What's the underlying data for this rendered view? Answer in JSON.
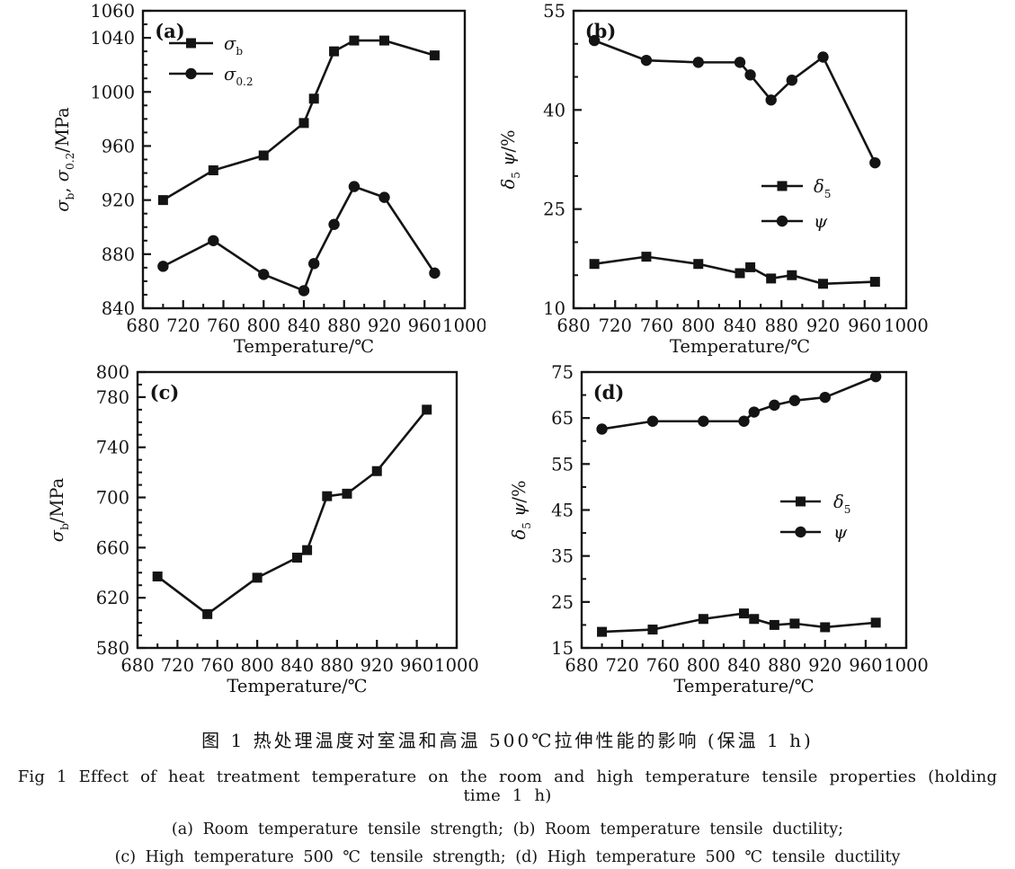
{
  "figure": {
    "caption_zh": "图 1  热处理温度对室温和高温 500℃拉伸性能的影响 (保温 1 h)",
    "caption_en": "Fig 1   Effect of heat treatment temperature on the room and high temperature tensile properties (holding time 1 h)",
    "caption_items_ab": "(a) Room temperature tensile strength;  (b) Room temperature tensile ductility;",
    "caption_items_cd": "(c) High temperature 500 ℃ tensile strength;  (d) High temperature 500 ℃ tensile ductility"
  },
  "colors": {
    "ink": "#141414",
    "paper": "#ffffff"
  },
  "chart_data": [
    {
      "id": "a",
      "type": "line",
      "panel_label": "(a)",
      "xlabel": "Temperature/℃",
      "ylabel_segments": [
        {
          "t": "σ"
        },
        {
          "t": "b",
          "sub": true
        },
        {
          "t": ", "
        },
        {
          "t": "σ"
        },
        {
          "t": "0.2",
          "sub": true
        },
        {
          "t": "/MPa"
        }
      ],
      "xlim": [
        680,
        1000
      ],
      "ylim": [
        840,
        1060
      ],
      "xticks": [
        680,
        720,
        760,
        800,
        840,
        880,
        920,
        960,
        1000
      ],
      "yticks": [
        840,
        880,
        920,
        960,
        1000,
        1040,
        1060
      ],
      "x_minor_step": 20,
      "y_minor_step": 10,
      "grid": false,
      "legend_position": "inside-top-left",
      "x": [
        700,
        750,
        800,
        840,
        850,
        870,
        890,
        920,
        970
      ],
      "series": [
        {
          "name": "σb",
          "name_segments": [
            {
              "t": "σ"
            },
            {
              "t": "b",
              "sub": true
            }
          ],
          "marker": "square",
          "values": [
            920,
            942,
            953,
            977,
            995,
            1030,
            1038,
            1038,
            1027
          ]
        },
        {
          "name": "σ0.2",
          "name_segments": [
            {
              "t": "σ"
            },
            {
              "t": "0.2",
              "sub": true
            }
          ],
          "marker": "circle",
          "values": [
            871,
            890,
            865,
            853,
            873,
            902,
            930,
            922,
            866
          ]
        }
      ]
    },
    {
      "id": "b",
      "type": "line",
      "panel_label": "(b)",
      "xlabel": "Temperature/℃",
      "ylabel_segments": [
        {
          "t": "δ"
        },
        {
          "t": "5",
          "sub": true
        },
        {
          "t": " ψ"
        },
        {
          "t": "/%"
        }
      ],
      "xlim": [
        680,
        1000
      ],
      "ylim": [
        10,
        55
      ],
      "xticks": [
        680,
        720,
        760,
        800,
        840,
        880,
        920,
        960,
        1000
      ],
      "yticks": [
        10,
        25,
        40,
        55
      ],
      "x_minor_step": 20,
      "y_minor_step": 5,
      "grid": false,
      "legend_position": "inside-middle-right",
      "x": [
        700,
        750,
        800,
        840,
        850,
        870,
        890,
        920,
        970
      ],
      "series": [
        {
          "name": "δ5",
          "name_segments": [
            {
              "t": "δ"
            },
            {
              "t": "5",
              "sub": true
            }
          ],
          "marker": "square",
          "values": [
            16.7,
            17.8,
            16.7,
            15.3,
            16.2,
            14.5,
            15,
            13.7,
            14
          ]
        },
        {
          "name": "ψ",
          "name_segments": [
            {
              "t": "ψ"
            }
          ],
          "marker": "circle",
          "values": [
            50.5,
            47.5,
            47.2,
            47.2,
            45.3,
            41.5,
            44.5,
            48,
            32
          ]
        }
      ]
    },
    {
      "id": "c",
      "type": "line",
      "panel_label": "(c)",
      "xlabel": "Temperature/℃",
      "ylabel_segments": [
        {
          "t": "σ"
        },
        {
          "t": "b",
          "sub": true
        },
        {
          "t": "/MPa"
        }
      ],
      "xlim": [
        680,
        1000
      ],
      "ylim": [
        580,
        800
      ],
      "xticks": [
        680,
        720,
        760,
        800,
        840,
        880,
        920,
        960,
        1000
      ],
      "yticks": [
        580,
        620,
        660,
        700,
        740,
        780,
        800
      ],
      "x_minor_step": 20,
      "y_minor_step": 10,
      "grid": false,
      "legend_position": "none",
      "x": [
        700,
        750,
        800,
        840,
        850,
        870,
        890,
        920,
        970
      ],
      "series": [
        {
          "name": "σb",
          "name_segments": [
            {
              "t": "σ"
            },
            {
              "t": "b",
              "sub": true
            }
          ],
          "marker": "square",
          "values": [
            637,
            607,
            636,
            652,
            658,
            701,
            703,
            721,
            770
          ]
        }
      ]
    },
    {
      "id": "d",
      "type": "line",
      "panel_label": "(d)",
      "xlabel": "Temperature/℃",
      "ylabel_segments": [
        {
          "t": "δ"
        },
        {
          "t": "5",
          "sub": true
        },
        {
          "t": " ψ"
        },
        {
          "t": "/%"
        }
      ],
      "xlim": [
        680,
        1000
      ],
      "ylim": [
        15,
        75
      ],
      "xticks": [
        680,
        720,
        760,
        800,
        840,
        880,
        920,
        960,
        1000
      ],
      "yticks": [
        15,
        25,
        35,
        45,
        55,
        65,
        75
      ],
      "x_minor_step": 20,
      "y_minor_step": 5,
      "grid": false,
      "legend_position": "inside-middle-right",
      "x": [
        700,
        750,
        800,
        840,
        850,
        870,
        890,
        920,
        970
      ],
      "series": [
        {
          "name": "δ5",
          "name_segments": [
            {
              "t": "δ"
            },
            {
              "t": "5",
              "sub": true
            }
          ],
          "marker": "square",
          "values": [
            18.5,
            19,
            21.3,
            22.5,
            21.3,
            20,
            20.3,
            19.5,
            20.5
          ]
        },
        {
          "name": "ψ",
          "name_segments": [
            {
              "t": "ψ"
            }
          ],
          "marker": "circle",
          "values": [
            62.6,
            64.3,
            64.3,
            64.3,
            66.3,
            67.8,
            68.8,
            69.5,
            74
          ]
        }
      ]
    }
  ]
}
